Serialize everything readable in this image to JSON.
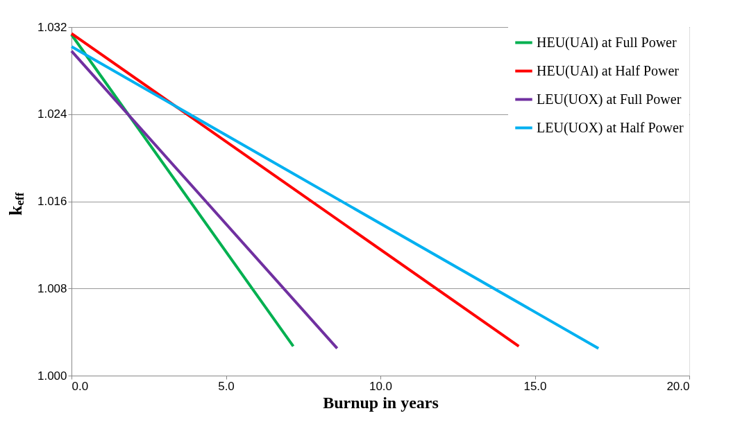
{
  "chart_data": {
    "type": "line",
    "xlabel": "Burnup in years",
    "ylabel": "k$_{eff}$",
    "series": [
      {
        "name": "HEU(UAl) at Full Power",
        "color": "#00b050",
        "x": [
          0,
          7.18
        ],
        "values": [
          1.0313,
          1.0027
        ]
      },
      {
        "name": "HEU(UAl) at Half Power",
        "color": "#ff0000",
        "x": [
          0,
          14.48
        ],
        "values": [
          1.0314,
          1.0027
        ]
      },
      {
        "name": "LEU(UOX) at Full Power",
        "color": "#7030a0",
        "x": [
          0,
          8.6
        ],
        "values": [
          1.0298,
          1.0025
        ]
      },
      {
        "name": "LEU(UOX) at Half Power",
        "color": "#00b0f0",
        "x": [
          0,
          17.06
        ],
        "values": [
          1.0302,
          1.0025
        ]
      }
    ],
    "xlim": [
      0,
      20
    ],
    "ylim": [
      1.0,
      1.032
    ],
    "xticks": [
      {
        "value": 0,
        "label": "0.0"
      },
      {
        "value": 5,
        "label": "5.0"
      },
      {
        "value": 10,
        "label": "10.0"
      },
      {
        "value": 15,
        "label": "15.0"
      },
      {
        "value": 20,
        "label": "20.0"
      }
    ],
    "yticks": [
      {
        "value": 1.0,
        "label": "1.000"
      },
      {
        "value": 1.008,
        "label": "1.008"
      },
      {
        "value": 1.016,
        "label": "1.016"
      },
      {
        "value": 1.024,
        "label": "1.024"
      },
      {
        "value": 1.032,
        "label": "1.032"
      }
    ],
    "grid": "y",
    "legend": "top right",
    "marker": "none",
    "line_style": "solid"
  }
}
